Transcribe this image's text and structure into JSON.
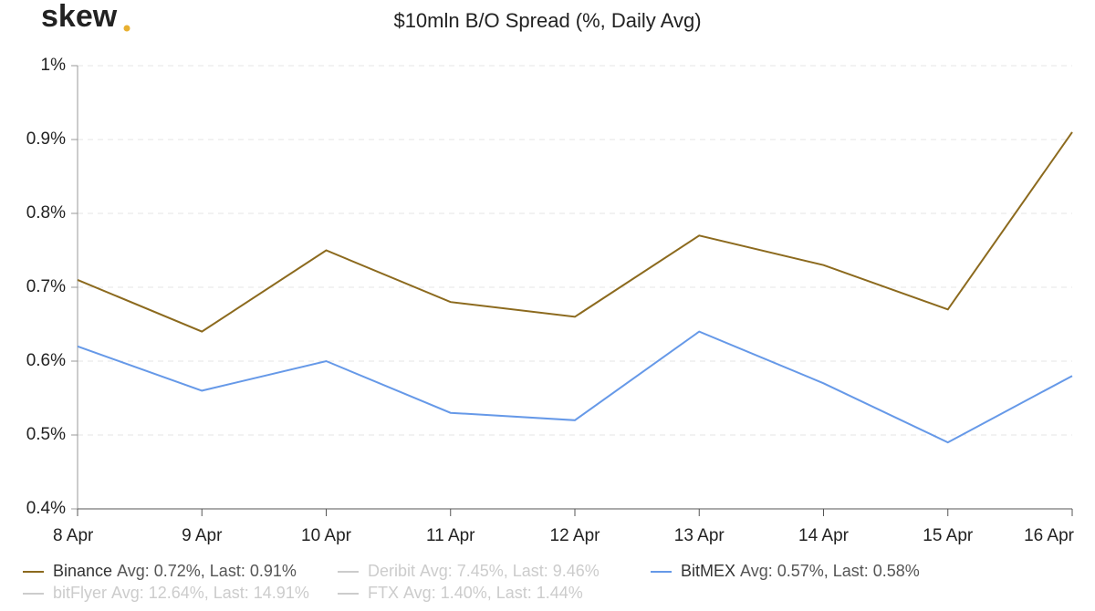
{
  "chart_data": {
    "type": "line",
    "logo": "skew",
    "title": "$10mln B/O Spread (%, Daily Avg)",
    "categories": [
      "8 Apr",
      "9 Apr",
      "10 Apr",
      "11 Apr",
      "12 Apr",
      "13 Apr",
      "14 Apr",
      "15 Apr",
      "16 Apr"
    ],
    "series": [
      {
        "name": "Binance",
        "color": "#8c6a1e",
        "stats": "Avg: 0.72%, Last: 0.91%",
        "values": [
          0.71,
          0.64,
          0.75,
          0.68,
          0.66,
          0.77,
          0.73,
          0.67,
          0.91
        ]
      },
      {
        "name": "Deribit",
        "color": "#cccccc",
        "stats": "Avg: 7.45%, Last: 9.46%",
        "hidden": true
      },
      {
        "name": "BitMEX",
        "color": "#6699e8",
        "stats": "Avg: 0.57%, Last: 0.58%",
        "values": [
          0.62,
          0.56,
          0.6,
          0.53,
          0.52,
          0.64,
          0.57,
          0.49,
          0.58
        ]
      },
      {
        "name": "bitFlyer",
        "color": "#cccccc",
        "stats": "Avg: 12.64%, Last: 14.91%",
        "hidden": true
      },
      {
        "name": "FTX",
        "color": "#cccccc",
        "stats": "Avg: 1.40%, Last: 1.44%",
        "hidden": true
      }
    ],
    "ylim": [
      0.4,
      1
    ],
    "yticks": [
      {
        "value": 0.4,
        "label": "0.4%"
      },
      {
        "value": 0.5,
        "label": "0.5%"
      },
      {
        "value": 0.6,
        "label": "0.6%"
      },
      {
        "value": 0.7,
        "label": "0.7%"
      },
      {
        "value": 0.8,
        "label": "0.8%"
      },
      {
        "value": 0.9,
        "label": "0.9%"
      },
      {
        "value": 1,
        "label": "1%"
      }
    ],
    "grid": true
  }
}
